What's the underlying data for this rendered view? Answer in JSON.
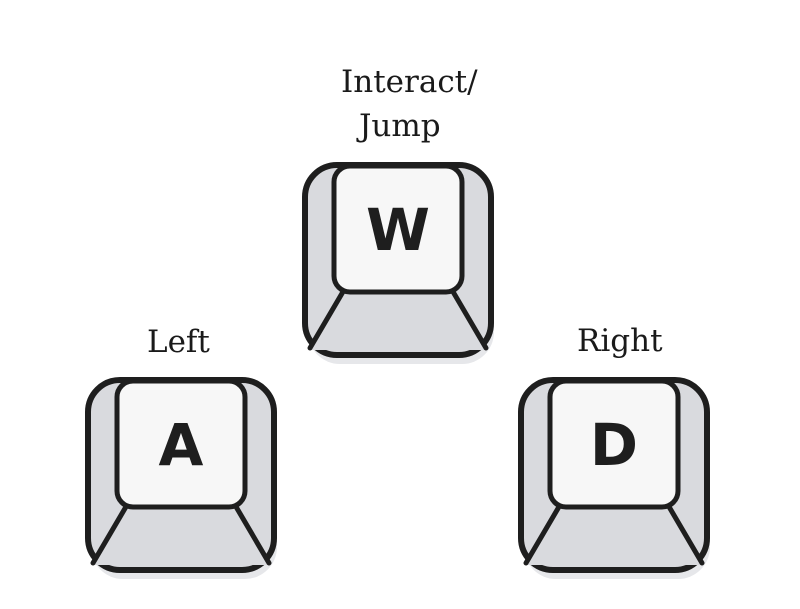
{
  "colors": {
    "outline": "#1e1e1e",
    "key_top": "#f7f7f7",
    "key_side": "#d9dade",
    "shadow": "#e6e7ea",
    "background": "#ffffff"
  },
  "keys": [
    {
      "id": "w",
      "letter": "W",
      "label_lines": [
        "Interact/",
        "Jump"
      ]
    },
    {
      "id": "a",
      "letter": "A",
      "label_lines": [
        "Left"
      ]
    },
    {
      "id": "d",
      "letter": "D",
      "label_lines": [
        "Right"
      ]
    }
  ]
}
